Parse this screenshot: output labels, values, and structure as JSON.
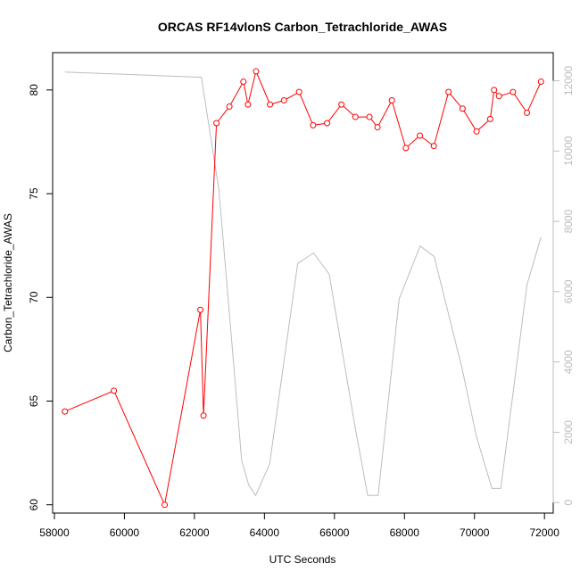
{
  "chart_data": {
    "type": "line",
    "title": "ORCAS RF14vlonS Carbon_Tetrachloride_AWAS",
    "xlabel": "UTC Seconds",
    "ylabel": "Carbon_Tetrachloride_AWAS",
    "xlim": [
      57950,
      72250
    ],
    "ylim": [
      59.6,
      81.8
    ],
    "y2lim": [
      -300,
      12800
    ],
    "x_ticks": [
      58000,
      60000,
      62000,
      64000,
      66000,
      68000,
      70000,
      72000
    ],
    "y_ticks": [
      60,
      65,
      70,
      75,
      80
    ],
    "y2_ticks": [
      0,
      2000,
      4000,
      6000,
      8000,
      10000,
      12000
    ],
    "grid": false,
    "series": [
      {
        "axis": "left",
        "color": "#ff0000",
        "marker": "open-circle",
        "x": [
          58300,
          59700,
          61150,
          62170,
          62260,
          62630,
          63000,
          63400,
          63530,
          63760,
          64160,
          64560,
          64990,
          65390,
          65790,
          66200,
          66600,
          67000,
          67230,
          67640,
          68040,
          68440,
          68840,
          69260,
          69660,
          70060,
          70450,
          70560,
          70700,
          71100,
          71500,
          71900
        ],
        "values": [
          64.5,
          65.5,
          60.0,
          69.4,
          64.3,
          78.4,
          79.2,
          80.4,
          79.3,
          80.9,
          79.3,
          79.5,
          79.9,
          78.3,
          78.4,
          79.3,
          78.7,
          78.7,
          78.2,
          79.5,
          77.2,
          77.8,
          77.3,
          79.9,
          79.1,
          78.0,
          78.6,
          80.0,
          79.7,
          79.9,
          78.9,
          80.4
        ]
      },
      {
        "axis": "right",
        "color": "#bdbdbd",
        "marker": "none",
        "x": [
          58300,
          62200,
          62700,
          63100,
          63350,
          63550,
          63750,
          64150,
          64950,
          65400,
          65850,
          66600,
          66950,
          67250,
          67850,
          68450,
          68850,
          69650,
          70050,
          70500,
          70750,
          71500,
          71900
        ],
        "values": [
          12250,
          12100,
          8900,
          4200,
          1200,
          500,
          200,
          1100,
          6800,
          7100,
          6500,
          2100,
          200,
          200,
          5800,
          7300,
          7000,
          3800,
          1900,
          400,
          400,
          6200,
          7550
        ]
      }
    ]
  }
}
